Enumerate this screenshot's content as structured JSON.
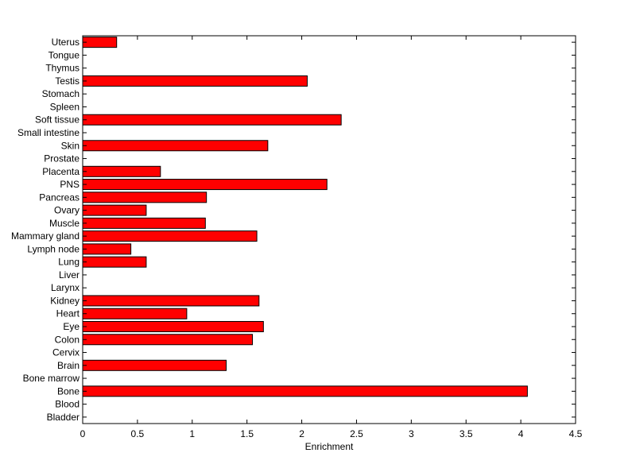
{
  "chart_data": {
    "type": "bar",
    "orientation": "horizontal",
    "title": "",
    "xlabel": "Enrichment",
    "ylabel": "",
    "xlim": [
      0,
      4.5
    ],
    "xticks": [
      "0",
      "0.5",
      "1",
      "1.5",
      "2",
      "2.5",
      "3",
      "3.5",
      "4",
      "4.5"
    ],
    "grid": false,
    "bar_color": "#ff0000",
    "bar_edge_color": "#000000",
    "categories": [
      "Bladder",
      "Blood",
      "Bone",
      "Bone marrow",
      "Brain",
      "Cervix",
      "Colon",
      "Eye",
      "Heart",
      "Kidney",
      "Larynx",
      "Liver",
      "Lung",
      "Lymph node",
      "Mammary gland",
      "Muscle",
      "Ovary",
      "Pancreas",
      "PNS",
      "Placenta",
      "Prostate",
      "Skin",
      "Small intestine",
      "Soft tissue",
      "Spleen",
      "Stomach",
      "Testis",
      "Thymus",
      "Tongue",
      "Uterus"
    ],
    "values": [
      0,
      0,
      4.06,
      0,
      1.31,
      0,
      1.55,
      1.65,
      0.95,
      1.61,
      0,
      0,
      0.58,
      0.44,
      1.59,
      1.12,
      0.58,
      1.13,
      2.23,
      0.71,
      0,
      1.69,
      0,
      2.36,
      0,
      0,
      2.05,
      0,
      0,
      0.31
    ]
  }
}
